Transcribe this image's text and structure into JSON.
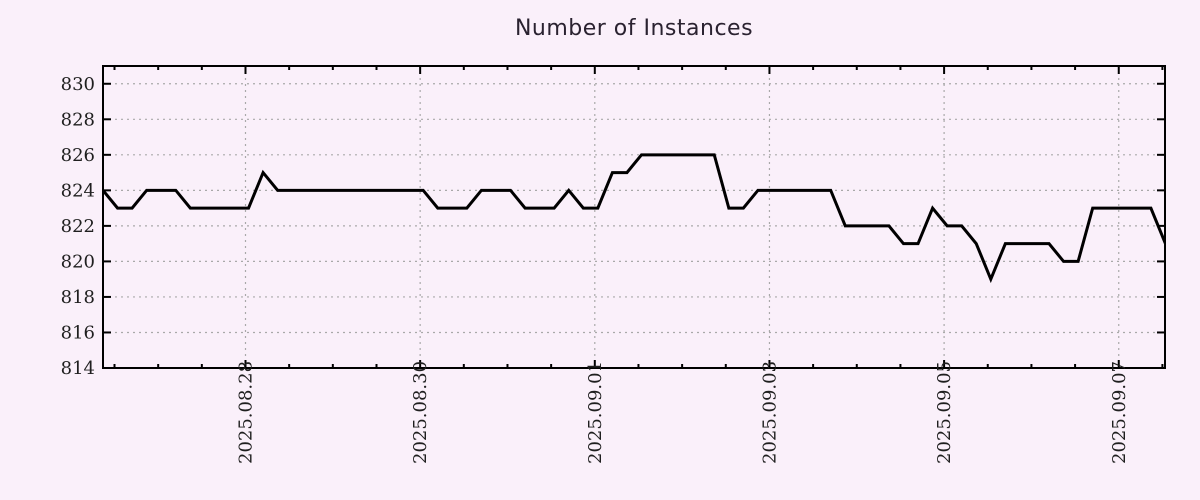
{
  "window": {
    "background_color": "#faf0fa"
  },
  "chart_data": {
    "type": "line",
    "title": "Number of Instances",
    "xlabel": "",
    "ylabel": "",
    "x_tick_labels": [
      "2025.08.28",
      "2025.08.30",
      "2025.09.01",
      "2025.09.03",
      "2025.09.05",
      "2025.09.07"
    ],
    "y_tick_labels": [
      "814",
      "816",
      "818",
      "820",
      "822",
      "824",
      "826",
      "828",
      "830"
    ],
    "y_ticks": [
      814,
      816,
      818,
      820,
      822,
      824,
      826,
      828,
      830
    ],
    "ylim": [
      814,
      831
    ],
    "grid": {
      "style": "dotted",
      "color": "#a9a9a9",
      "horizontal": true,
      "vertical": true
    },
    "axes": {
      "frame_color": "#000000",
      "tick_label_color": "#1f1f1f",
      "x_minor_ticks_per_major": 4,
      "ticks_mirrored": true
    },
    "legend": "none",
    "series": [
      {
        "name": "instances",
        "color": "#000000",
        "line_width": 3,
        "samples_per_x_major_interval": 12,
        "values": [
          824,
          823,
          823,
          824,
          824,
          824,
          823,
          823,
          823,
          823,
          823,
          825,
          824,
          824,
          824,
          824,
          824,
          824,
          824,
          824,
          824,
          824,
          824,
          823,
          823,
          823,
          824,
          824,
          824,
          823,
          823,
          823,
          824,
          823,
          823,
          825,
          825,
          826,
          826,
          826,
          826,
          826,
          826,
          823,
          823,
          824,
          824,
          824,
          824,
          824,
          824,
          822,
          822,
          822,
          822,
          821,
          821,
          823,
          822,
          822,
          821,
          819,
          821,
          821,
          821,
          821,
          820,
          820,
          823,
          823,
          823,
          823,
          823,
          821
        ]
      }
    ]
  }
}
